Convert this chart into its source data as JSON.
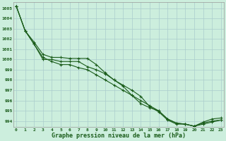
{
  "title": "Graphe pression niveau de la mer (hPa)",
  "bg_color": "#cceedd",
  "grid_color": "#aacccc",
  "line_color": "#1a5c1a",
  "x_ticks": [
    0,
    1,
    2,
    3,
    4,
    5,
    6,
    7,
    8,
    9,
    10,
    11,
    12,
    13,
    14,
    15,
    16,
    17,
    18,
    19,
    20,
    21,
    22,
    23
  ],
  "ylim": [
    993.4,
    1005.6
  ],
  "yticks": [
    994,
    995,
    996,
    997,
    998,
    999,
    1000,
    1001,
    1002,
    1003,
    1004,
    1005
  ],
  "series": [
    [
      1005.2,
      1002.8,
      1001.5,
      1000.0,
      1000.0,
      999.8,
      999.8,
      999.8,
      999.3,
      999.0,
      998.6,
      998.0,
      997.5,
      997.0,
      996.4,
      995.4,
      994.9,
      994.1,
      993.7,
      993.7,
      993.5,
      993.7,
      993.9,
      994.1
    ],
    [
      1005.2,
      1002.8,
      1001.5,
      1000.2,
      999.8,
      999.5,
      999.5,
      999.2,
      999.0,
      998.5,
      998.0,
      997.5,
      997.0,
      996.5,
      996.0,
      995.5,
      995.0,
      994.2,
      993.8,
      993.7,
      993.5,
      993.8,
      994.0,
      994.1
    ],
    [
      1005.2,
      1002.8,
      1001.7,
      1000.5,
      1000.2,
      1000.2,
      1000.1,
      1000.1,
      1000.1,
      999.5,
      998.7,
      998.0,
      997.4,
      996.5,
      995.7,
      995.3,
      995.0,
      994.2,
      993.8,
      993.7,
      993.5,
      993.9,
      994.2,
      994.3
    ]
  ],
  "tick_fontsize": 4.5,
  "xlabel_fontsize": 6.0,
  "linewidth": 0.8,
  "markersize": 2.5
}
